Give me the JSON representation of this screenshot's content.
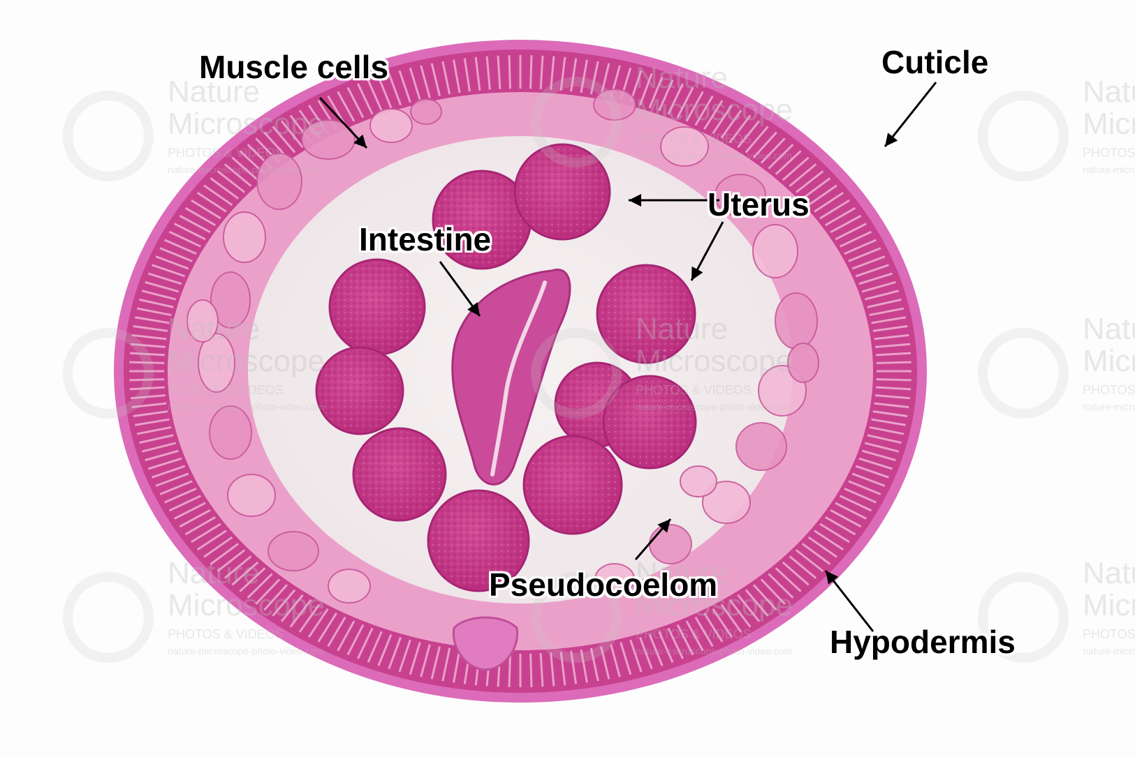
{
  "labels": {
    "muscle_cells": "Muscle cells",
    "cuticle": "Cuticle",
    "uterus": "Uterus",
    "intestine": "Intestine",
    "pseudocoelom": "Pseudocoelom",
    "hypodermis": "Hypodermis"
  },
  "watermark": {
    "line1": "Nature",
    "line2": "Microscope",
    "line3": "PHOTOS & VIDEOS",
    "line4": "nature-microscope-photo-video.com"
  },
  "colors": {
    "background": "#fdfdfd",
    "cuticle": "#d95fb5",
    "hypodermis": "#c8418f",
    "muscle": "#eda4cd",
    "tissue_dark": "#c73a8a",
    "cavity": "#f3eeee",
    "label_text": "#000000"
  }
}
